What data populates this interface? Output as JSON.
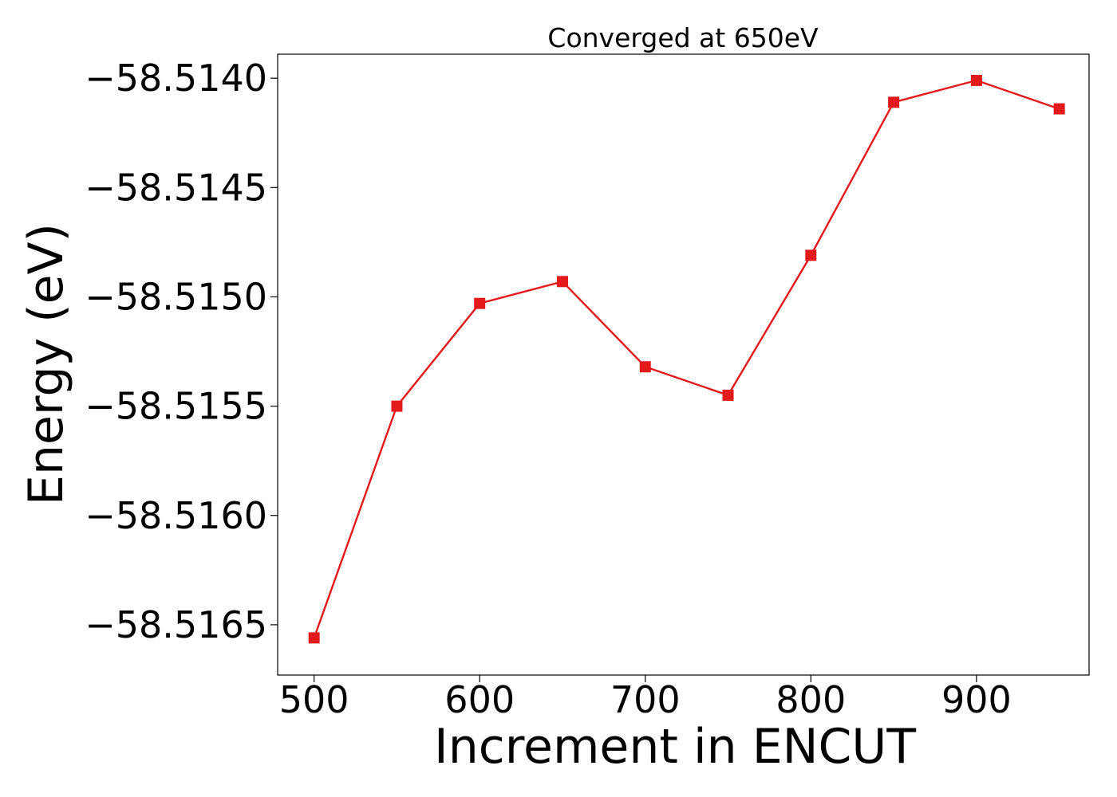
{
  "chart_data": {
    "type": "line",
    "title": "Converged at 650eV",
    "xlabel": "Increment in ENCUT",
    "ylabel": "Energy (eV)",
    "x": [
      500,
      550,
      600,
      650,
      700,
      750,
      800,
      850,
      900,
      950
    ],
    "series": [
      {
        "values": [
          -58.51656,
          -58.5155,
          -58.51503,
          -58.51493,
          -58.51532,
          -58.51545,
          -58.51481,
          -58.51411,
          -58.51401,
          -58.51414
        ],
        "color": "#e31a1c",
        "marker": "square"
      }
    ],
    "xlim": [
      478,
      968
    ],
    "ylim": [
      -58.51673,
      -58.51389
    ],
    "xticks": [
      500,
      600,
      700,
      800,
      900
    ],
    "xtick_labels": [
      "500",
      "600",
      "700",
      "800",
      "900"
    ],
    "yticks": [
      -58.514,
      -58.5145,
      -58.515,
      -58.5155,
      -58.516,
      -58.5165
    ],
    "ytick_labels": [
      "−58.5140",
      "−58.5145",
      "−58.5150",
      "−58.5155",
      "−58.5160",
      "−58.5165"
    ],
    "grid": false,
    "legend": "none"
  }
}
